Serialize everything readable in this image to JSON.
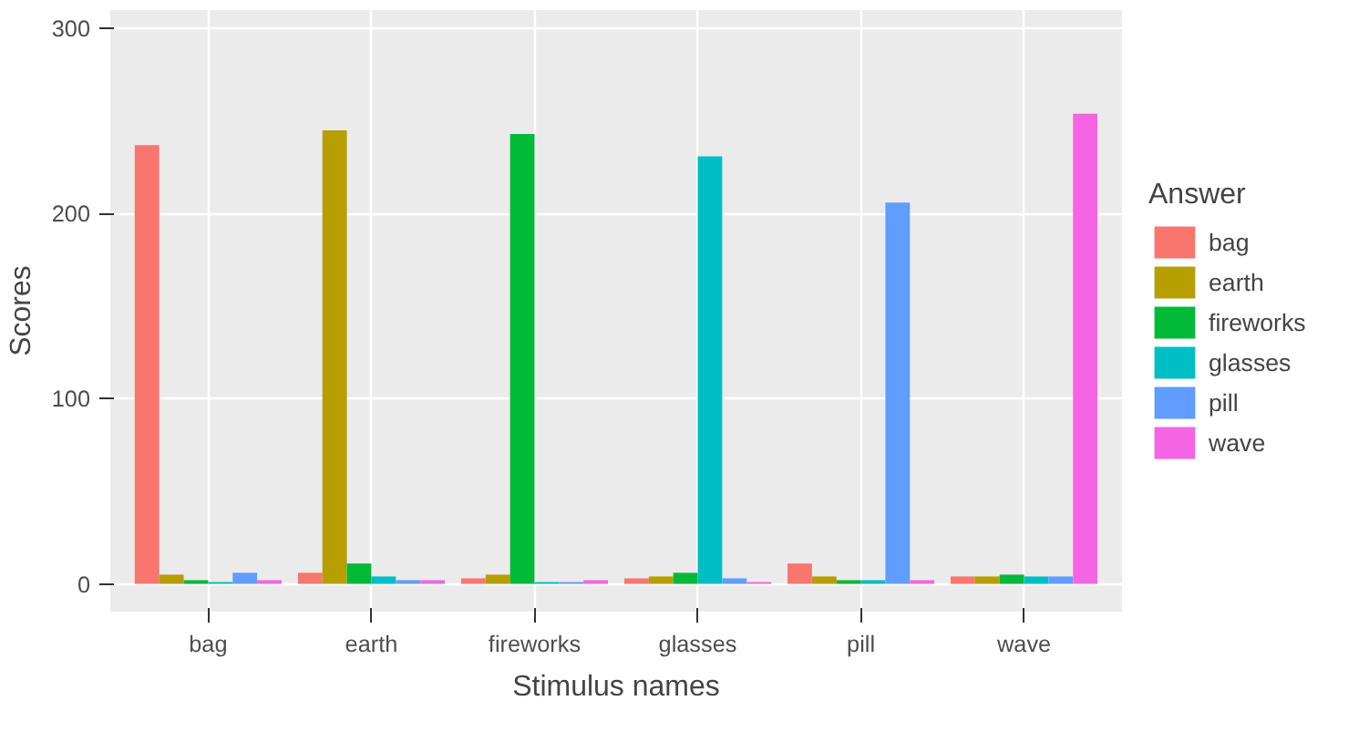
{
  "chart_data": {
    "type": "bar",
    "xlabel": "Stimulus names",
    "ylabel": "Scores",
    "legend_title": "Answer",
    "categories": [
      "bag",
      "earth",
      "fireworks",
      "glasses",
      "pill",
      "wave"
    ],
    "series": [
      {
        "name": "bag",
        "color": "#f8766d",
        "values": [
          237,
          6,
          3,
          3,
          11,
          4
        ]
      },
      {
        "name": "earth",
        "color": "#b79f00",
        "values": [
          5,
          245,
          5,
          4,
          4,
          4
        ]
      },
      {
        "name": "fireworks",
        "color": "#00ba38",
        "values": [
          2,
          11,
          243,
          6,
          2,
          5
        ]
      },
      {
        "name": "glasses",
        "color": "#00bfc4",
        "values": [
          1,
          4,
          1,
          231,
          2,
          4
        ]
      },
      {
        "name": "pill",
        "color": "#619cff",
        "values": [
          6,
          2,
          1,
          3,
          206,
          4
        ]
      },
      {
        "name": "wave",
        "color": "#f564e3",
        "values": [
          2,
          2,
          2,
          1,
          2,
          254
        ]
      }
    ],
    "ylim": [
      -15,
      310
    ],
    "yticks": [
      0,
      100,
      200,
      300
    ],
    "grid": true,
    "legend": "right"
  }
}
